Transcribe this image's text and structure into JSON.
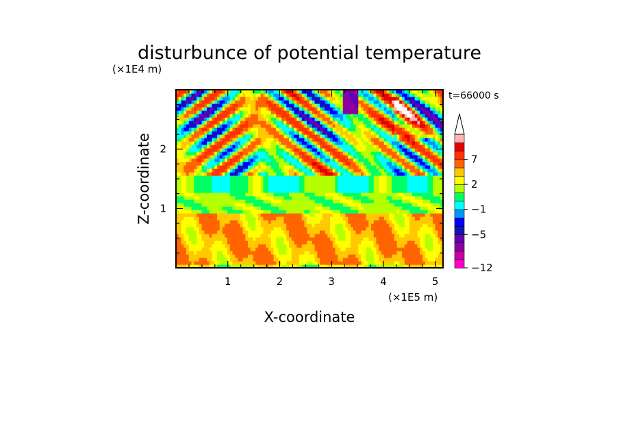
{
  "chart_data": {
    "type": "heatmap",
    "title": "disturbunce of potential temperature",
    "time_label": "t=66000 s",
    "xlabel": "X-coordinate",
    "ylabel": "Z-coordinate",
    "x_unit": "(×1E5 m)",
    "y_unit": "(×1E4 m)",
    "xlim": [
      0,
      5.15
    ],
    "ylim": [
      0,
      3.0
    ],
    "x_ticks": [
      1,
      2,
      3,
      4,
      5
    ],
    "y_ticks": [
      1,
      2
    ],
    "colorbar": {
      "levels": [
        -12,
        -10,
        -8,
        -6,
        -5,
        -4,
        -3,
        -1,
        0,
        1,
        2,
        3,
        5,
        7,
        9,
        11
      ],
      "colors": [
        "#ff00c8",
        "#c800a0",
        "#8c00a0",
        "#6400b4",
        "#1414b4",
        "#0000ff",
        "#0096ff",
        "#00ffff",
        "#00ff64",
        "#b4ff00",
        "#ffff00",
        "#ffc800",
        "#ff6400",
        "#ff3200",
        "#e60000",
        "#ffb4b4",
        "#ffffff"
      ],
      "tick_labels": [
        "7",
        "2",
        "−1",
        "−5",
        "−12"
      ],
      "tick_values": [
        7,
        2,
        -1,
        -5,
        -12
      ]
    }
  }
}
